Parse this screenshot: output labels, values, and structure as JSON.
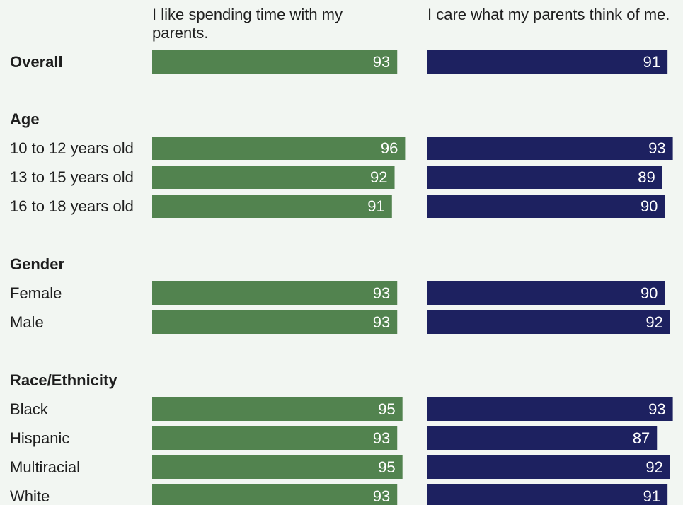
{
  "chart_data": {
    "type": "bar",
    "orientation": "horizontal",
    "colors": {
      "series_1": "#52834f",
      "series_2": "#1d2160",
      "background": "#f2f6f2",
      "text": "#1e1e1e",
      "label_text": "#ffffff"
    },
    "series": [
      {
        "name": "I like spending time with my parents."
      },
      {
        "name": "I care what my parents think of me."
      }
    ],
    "groups": [
      {
        "heading": "",
        "rows": [
          {
            "label": "Overall",
            "bold": true,
            "values": [
              93,
              91
            ]
          }
        ]
      },
      {
        "heading": "Age",
        "rows": [
          {
            "label": "10 to 12 years old",
            "values": [
              96,
              93
            ]
          },
          {
            "label": "13 to 15 years old",
            "values": [
              92,
              89
            ]
          },
          {
            "label": "16 to 18 years old",
            "values": [
              91,
              90
            ]
          }
        ]
      },
      {
        "heading": "Gender",
        "rows": [
          {
            "label": "Female",
            "values": [
              93,
              90
            ]
          },
          {
            "label": "Male",
            "values": [
              93,
              92
            ]
          }
        ]
      },
      {
        "heading": "Race/Ethnicity",
        "rows": [
          {
            "label": "Black",
            "values": [
              95,
              93
            ]
          },
          {
            "label": "Hispanic",
            "values": [
              93,
              87
            ]
          },
          {
            "label": "Multiracial",
            "values": [
              95,
              92
            ]
          },
          {
            "label": "White",
            "values": [
              93,
              91
            ]
          }
        ]
      }
    ]
  }
}
